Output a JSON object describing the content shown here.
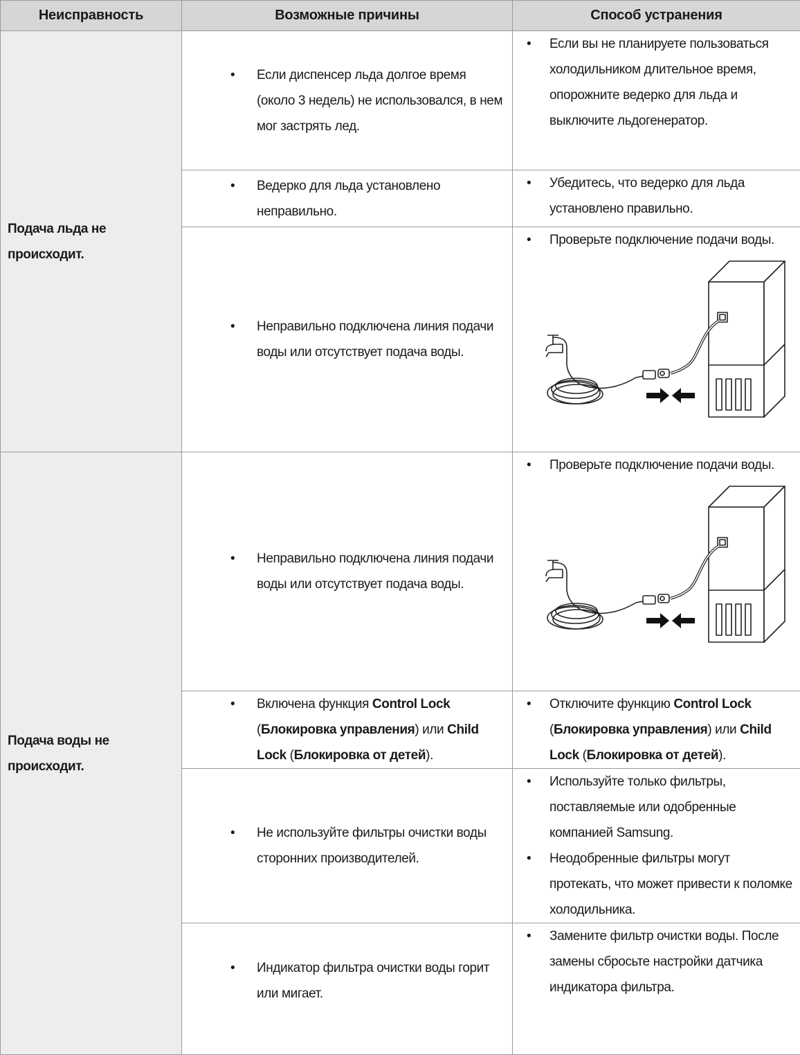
{
  "header": {
    "columns": [
      "Неисправность",
      "Возможные причины",
      "Способ устранения"
    ]
  },
  "sections": [
    {
      "problem": "Подача льда не происходит.",
      "rows": [
        {
          "causes": [
            "Если диспенсер льда долгое время (около 3 недель) не использовался, в нем мог застрять лед."
          ],
          "solutions": [
            "Если вы не планируете пользоваться холодильником длительное время, опорожните ведерко для льда и выключите льдогенератор."
          ]
        },
        {
          "causes": [
            "Ведерко для льда установлено неправильно."
          ],
          "solutions": [
            "Убедитесь, что ведерко для льда установлено правильно."
          ]
        },
        {
          "causes": [
            "Неправильно подключена линия подачи воды или отсутствует подача воды."
          ],
          "solutions": [
            "Проверьте подключение подачи воды."
          ]
        }
      ]
    },
    {
      "problem": "Подача воды не происходит.",
      "rows": [
        {
          "causes": [
            "Неправильно подключена линия подачи воды или отсутствует подача воды."
          ],
          "solutions": [
            "Проверьте подключение подачи воды."
          ]
        },
        {
          "causes": [
            [
              "Включена функция ",
              "Control Lock",
              " (",
              "Блокировка управления",
              ") или ",
              "Child Lock",
              " (",
              "Блокировка от детей",
              ")."
            ]
          ],
          "solutions": [
            [
              "Отключите функцию ",
              "Control Lock",
              " (",
              "Блокировка управления",
              ") или ",
              "Child Lock",
              " (",
              "Блокировка от детей",
              ")."
            ]
          ]
        },
        {
          "causes": [
            "Не используйте фильтры очистки воды сторонних производителей."
          ],
          "solutions": [
            "Используйте только фильтры, поставляемые или одобренные компанией Samsung.",
            "Неодобренные фильтры могут протекать, что может привести к поломке холодильника."
          ]
        },
        {
          "causes": [
            "Индикатор фильтра очистки воды горит или мигает."
          ],
          "solutions": [
            "Замените фильтр очистки воды. После замены сбросьте настройки датчика индикатора фильтра."
          ]
        }
      ]
    }
  ]
}
